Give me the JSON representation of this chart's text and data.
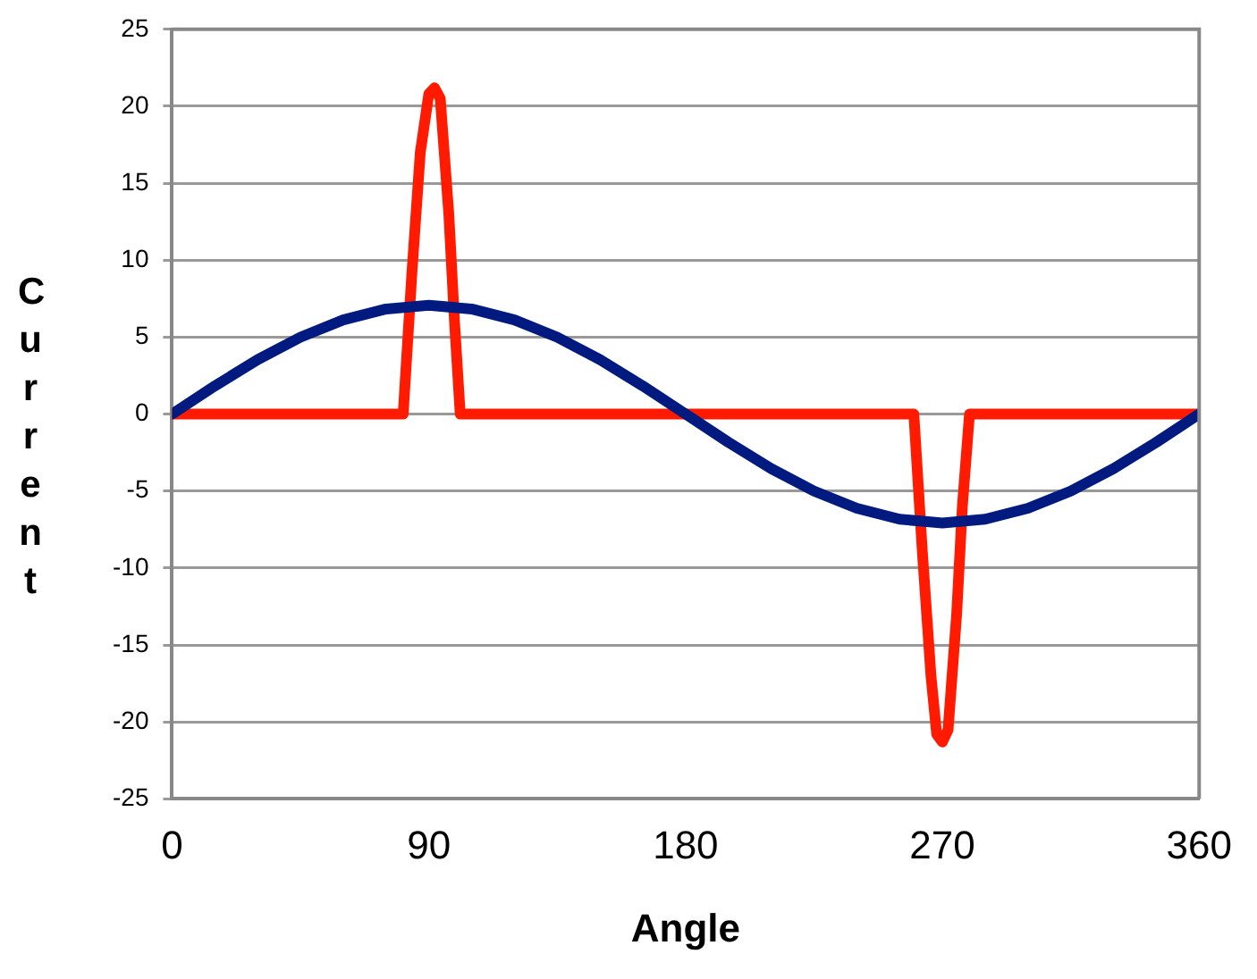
{
  "chart_data": {
    "type": "line",
    "xlabel": "Angle",
    "ylabel": "Current",
    "xlim": [
      0,
      360
    ],
    "xticks": [
      0,
      90,
      180,
      270,
      360
    ],
    "ylim": [
      -25,
      25
    ],
    "yticks": [
      -25,
      -20,
      -15,
      -10,
      -5,
      0,
      5,
      10,
      15,
      20,
      25
    ],
    "grid": "y",
    "legend": false,
    "marker": "none",
    "line_style": "solid",
    "series": [
      {
        "color": "#001a80",
        "x": [
          0,
          15,
          30,
          45,
          60,
          75,
          90,
          105,
          120,
          135,
          150,
          165,
          180,
          195,
          210,
          225,
          240,
          255,
          270,
          285,
          300,
          315,
          330,
          345,
          360
        ],
        "values": [
          0,
          1.83,
          3.54,
          5,
          6.12,
          6.83,
          7.07,
          6.83,
          6.12,
          5,
          3.54,
          1.83,
          0,
          -1.83,
          -3.54,
          -5,
          -6.12,
          -6.83,
          -7.07,
          -6.83,
          -6.12,
          -5,
          -3.54,
          -1.83,
          0
        ]
      },
      {
        "color": "#ff1a00",
        "x": [
          0,
          81,
          84,
          87,
          90,
          92,
          94,
          97,
          99,
          101,
          260,
          263,
          266,
          268,
          270,
          272,
          275,
          277,
          279.5,
          360
        ],
        "values": [
          0,
          0,
          9,
          17,
          20.8,
          21.2,
          20.5,
          13,
          6,
          0,
          0,
          -9,
          -17,
          -20.8,
          -21.3,
          -20.5,
          -13,
          -6,
          0,
          0
        ]
      }
    ]
  }
}
